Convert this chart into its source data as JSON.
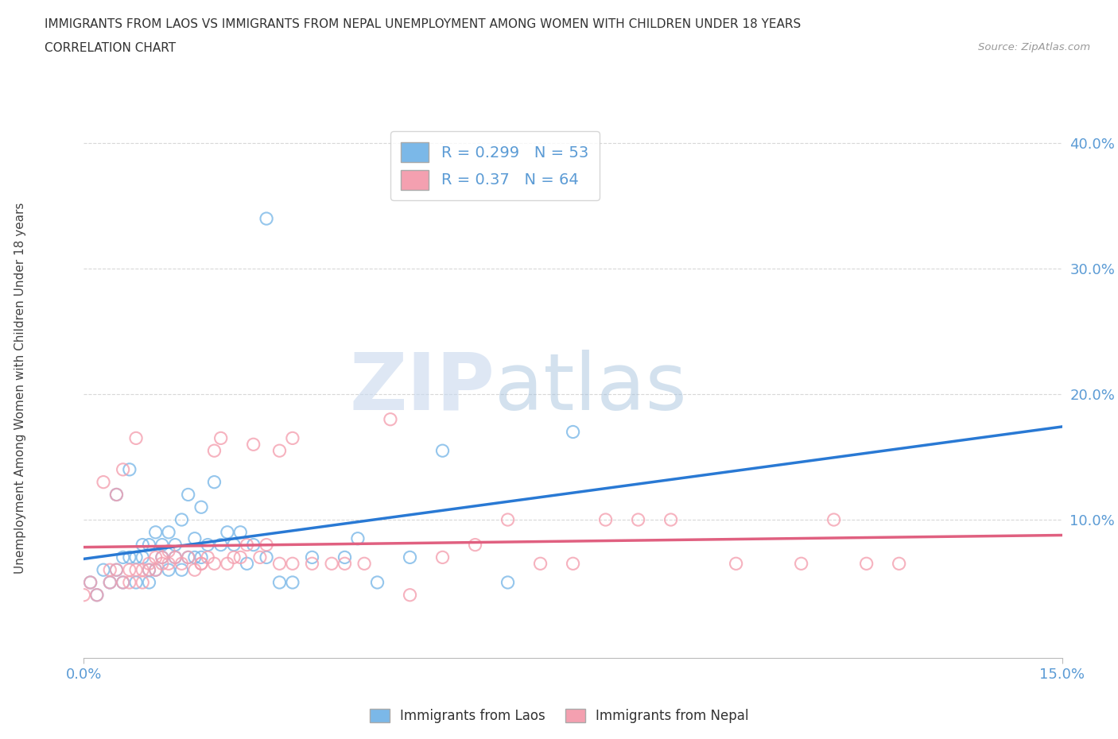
{
  "title_line1": "IMMIGRANTS FROM LAOS VS IMMIGRANTS FROM NEPAL UNEMPLOYMENT AMONG WOMEN WITH CHILDREN UNDER 18 YEARS",
  "title_line2": "CORRELATION CHART",
  "source": "Source: ZipAtlas.com",
  "xmin": 0.0,
  "xmax": 0.15,
  "ymin": -0.01,
  "ymax": 0.42,
  "laos_color": "#7bb8e8",
  "nepal_color": "#f4a0b0",
  "laos_line_color": "#2979d4",
  "nepal_line_color": "#e06080",
  "laos_R": 0.299,
  "laos_N": 53,
  "nepal_R": 0.37,
  "nepal_N": 64,
  "laos_scatter_x": [
    0.001,
    0.002,
    0.003,
    0.004,
    0.005,
    0.005,
    0.006,
    0.006,
    0.007,
    0.007,
    0.008,
    0.008,
    0.009,
    0.009,
    0.01,
    0.01,
    0.01,
    0.011,
    0.011,
    0.012,
    0.012,
    0.013,
    0.013,
    0.014,
    0.014,
    0.015,
    0.015,
    0.016,
    0.016,
    0.017,
    0.017,
    0.018,
    0.018,
    0.019,
    0.02,
    0.021,
    0.022,
    0.023,
    0.024,
    0.025,
    0.026,
    0.028,
    0.03,
    0.032,
    0.035,
    0.04,
    0.042,
    0.045,
    0.05,
    0.055,
    0.065,
    0.075,
    0.028
  ],
  "laos_scatter_y": [
    0.05,
    0.04,
    0.06,
    0.05,
    0.06,
    0.12,
    0.05,
    0.07,
    0.07,
    0.14,
    0.05,
    0.07,
    0.07,
    0.08,
    0.05,
    0.06,
    0.08,
    0.06,
    0.09,
    0.07,
    0.08,
    0.06,
    0.09,
    0.07,
    0.08,
    0.06,
    0.1,
    0.07,
    0.12,
    0.07,
    0.085,
    0.07,
    0.11,
    0.08,
    0.13,
    0.08,
    0.09,
    0.08,
    0.09,
    0.065,
    0.08,
    0.07,
    0.05,
    0.05,
    0.07,
    0.07,
    0.085,
    0.05,
    0.07,
    0.155,
    0.05,
    0.17,
    0.34
  ],
  "nepal_scatter_x": [
    0.0,
    0.001,
    0.002,
    0.003,
    0.004,
    0.004,
    0.005,
    0.005,
    0.006,
    0.006,
    0.007,
    0.007,
    0.008,
    0.008,
    0.009,
    0.009,
    0.01,
    0.01,
    0.011,
    0.011,
    0.012,
    0.012,
    0.013,
    0.013,
    0.014,
    0.015,
    0.016,
    0.017,
    0.018,
    0.019,
    0.02,
    0.021,
    0.022,
    0.023,
    0.024,
    0.025,
    0.026,
    0.027,
    0.028,
    0.03,
    0.032,
    0.035,
    0.038,
    0.04,
    0.043,
    0.047,
    0.05,
    0.055,
    0.06,
    0.065,
    0.07,
    0.075,
    0.08,
    0.085,
    0.09,
    0.1,
    0.11,
    0.115,
    0.12,
    0.125,
    0.03,
    0.032,
    0.02,
    0.018
  ],
  "nepal_scatter_y": [
    0.04,
    0.05,
    0.04,
    0.13,
    0.05,
    0.06,
    0.06,
    0.12,
    0.05,
    0.14,
    0.05,
    0.06,
    0.06,
    0.165,
    0.05,
    0.06,
    0.06,
    0.065,
    0.06,
    0.07,
    0.065,
    0.07,
    0.065,
    0.075,
    0.07,
    0.065,
    0.07,
    0.06,
    0.065,
    0.07,
    0.155,
    0.165,
    0.065,
    0.07,
    0.07,
    0.08,
    0.16,
    0.07,
    0.08,
    0.065,
    0.065,
    0.065,
    0.065,
    0.065,
    0.065,
    0.18,
    0.04,
    0.07,
    0.08,
    0.1,
    0.065,
    0.065,
    0.1,
    0.1,
    0.1,
    0.065,
    0.065,
    0.1,
    0.065,
    0.065,
    0.155,
    0.165,
    0.065,
    0.065
  ],
  "watermark_zip": "ZIP",
  "watermark_atlas": "atlas",
  "background_color": "#ffffff",
  "grid_color": "#d8d8d8",
  "legend_text_color": "#5b9bd5"
}
